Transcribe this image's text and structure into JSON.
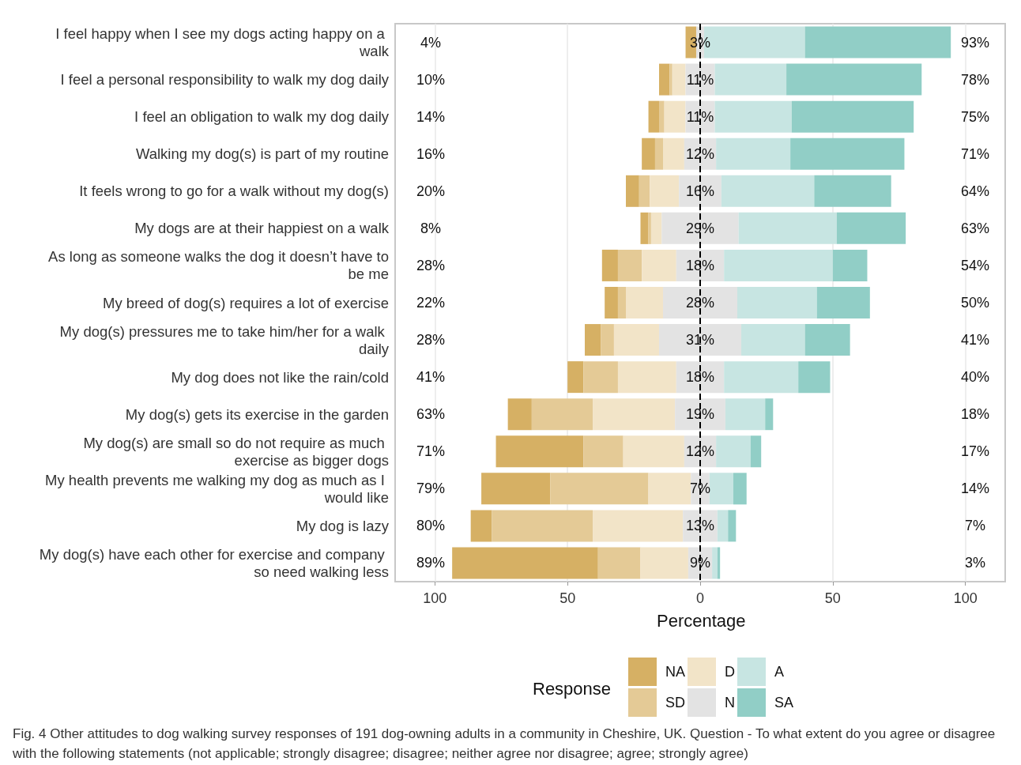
{
  "chart_data": {
    "type": "bar",
    "orientation": "horizontal",
    "xlabel": "Percentage",
    "legend_title": "Response",
    "legend": "bottom",
    "grid": "x",
    "categories": [
      "I feel happy when I see my dogs acting happy on a walk",
      "I feel a personal responsibility to walk my dog daily",
      "I feel an obligation to walk my dog daily",
      "Walking my dog(s) is part of my routine",
      "It feels wrong to go for a walk without my dog(s)",
      "My dogs are at their happiest on a walk",
      "As long as someone walks the dog it doesn’t have to be me",
      "My breed of dog(s) requires a lot of exercise",
      "My dog(s) pressures me to take him/her for a walk daily",
      "My dog does not like the rain/cold",
      "My dog(s) gets its exercise in the garden",
      "My dog(s) are small so do not require as much exercise as bigger dogs",
      "My health prevents me walking my dog as much as I would like",
      "My dog is lazy",
      "My dog(s) have each other for exercise and company so need walking less"
    ],
    "xlim": [
      -115,
      115
    ],
    "xticks": [
      {
        "value": -100,
        "label": "100"
      },
      {
        "value": -50,
        "label": "50"
      },
      0,
      50,
      100
    ],
    "ref_lines": [
      {
        "axis": "x",
        "value": 0,
        "line_style": "dashed",
        "color": "#000000"
      }
    ],
    "series": [
      {
        "name": "NA",
        "color": "#d6b064",
        "values": [
          4,
          4,
          4,
          5,
          5,
          3,
          6,
          5,
          6,
          6,
          9,
          33,
          26,
          8,
          55
        ],
        "base": [
          -5.5,
          -15.5,
          -19.5,
          -22,
          -28,
          -22.5,
          -37,
          -36,
          -43.5,
          -50,
          -72.5,
          -77,
          -82.5,
          -86.5,
          -93.5
        ]
      },
      {
        "name": "SD",
        "color": "#e4ca96",
        "values": [
          null,
          1,
          2,
          3,
          4,
          1,
          9,
          3,
          5,
          13,
          23,
          15,
          37,
          38,
          16
        ],
        "base": [
          null,
          -11.5,
          -15.5,
          -17,
          -23,
          -19.5,
          -31,
          -31,
          -37.5,
          -44,
          -63.5,
          -44,
          -56.5,
          -78.5,
          -38.5
        ]
      },
      {
        "name": "D",
        "color": "#f2e4c8",
        "values": [
          null,
          5,
          8,
          8,
          11,
          4,
          13,
          14,
          17,
          22,
          31,
          23,
          16,
          34,
          18
        ],
        "base": [
          null,
          -10.5,
          -13.5,
          -14,
          -19,
          -18.5,
          -22,
          -28,
          -32.5,
          -31,
          -40.5,
          -29,
          -19.5,
          -40.5,
          -22.5
        ]
      },
      {
        "name": "N",
        "color": "#e3e3e3",
        "values": [
          3,
          11,
          11,
          12,
          16,
          29,
          18,
          28,
          31,
          18,
          19,
          12,
          7,
          13,
          9
        ],
        "base": [
          -1.5,
          -5.5,
          -5.5,
          -6,
          -8,
          -14.5,
          -9,
          -14,
          -15.5,
          -9,
          -9.5,
          -6,
          -3.5,
          -6.5,
          -4.5
        ],
        "value_labels": [
          "3%",
          "11%",
          "11%",
          "12%",
          "16%",
          "29%",
          "18%",
          "28%",
          "31%",
          "18%",
          "19%",
          "12%",
          "7%",
          "13%",
          "9%"
        ]
      },
      {
        "name": "A",
        "color": "#c7e5e2",
        "values": [
          38,
          27,
          29,
          28,
          35,
          37,
          41,
          30,
          24,
          28,
          15,
          13,
          9,
          4,
          2
        ],
        "base": [
          1.5,
          5.5,
          5.5,
          6,
          8,
          14.5,
          9,
          14,
          15.5,
          9,
          9.5,
          6,
          3.5,
          6.5,
          4.5
        ]
      },
      {
        "name": "SA",
        "color": "#91cec6",
        "values": [
          55,
          51,
          46,
          43,
          29,
          26,
          13,
          20,
          17,
          12,
          3,
          4,
          5,
          3,
          1
        ],
        "base": [
          39.5,
          32.5,
          34.5,
          34,
          43,
          51.5,
          50,
          44,
          39.5,
          37,
          24.5,
          19,
          12.5,
          10.5,
          6.5
        ]
      }
    ],
    "annotations": [
      "4%",
      "10%",
      "14%",
      "16%",
      "20%",
      "8%",
      "28%",
      "22%",
      "28%",
      "41%",
      "63%",
      "71%",
      "79%",
      "80%",
      "89%",
      "93%",
      "78%",
      "75%",
      "71%",
      "64%",
      "63%",
      "54%",
      "50%",
      "41%",
      "40%",
      "18%",
      "17%",
      "14%",
      "7%",
      "3%",
      "Fig. 4 Other attitudes to dog walking survey responses of 191 dog-owning adults in a community in Cheshire, UK. Question - To what extent do you agree or disagree with the following statements (not applicable; strongly disagree; disagree; neither agree nor disagree; agree; strongly agree)"
    ]
  }
}
